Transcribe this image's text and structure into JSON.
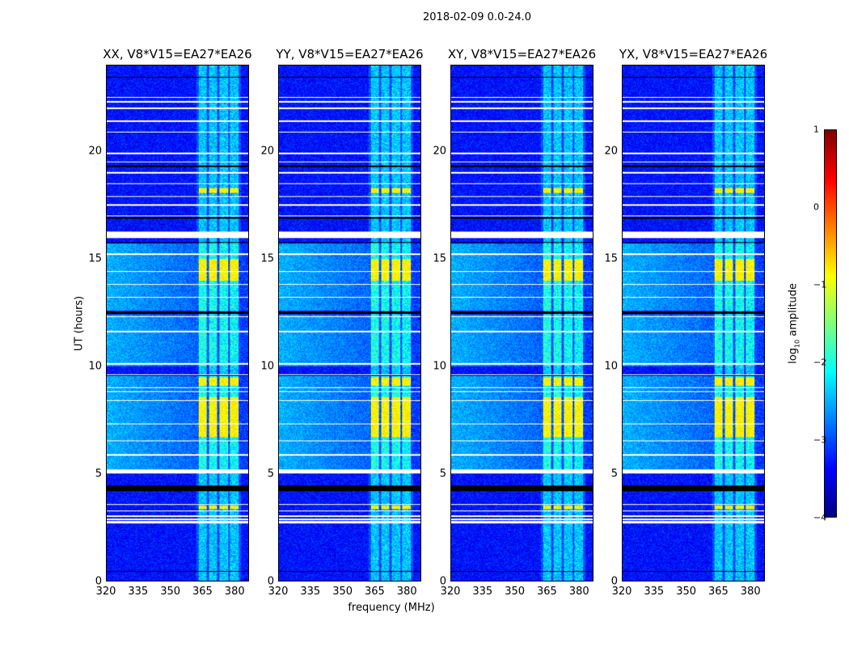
{
  "chart_data": {
    "type": "heatmap",
    "title": "2018-02-09 0.0-24.0",
    "xlabel": "frequency (MHz)",
    "ylabel": "UT (hours)",
    "xlim": [
      320,
      386.7
    ],
    "ylim": [
      0,
      24
    ],
    "xticks": [
      "320",
      "335",
      "350",
      "365",
      "380"
    ],
    "yticks": [
      "0",
      "5",
      "10",
      "15",
      "20"
    ],
    "panels": [
      {
        "title": "XX, V8*V15=EA27*EA26"
      },
      {
        "title": "YY, V8*V15=EA27*EA26"
      },
      {
        "title": "XY, V8*V15=EA27*EA26"
      },
      {
        "title": "YX, V8*V15=EA27*EA26"
      }
    ],
    "rfi_bands_mhz": [
      [
        363,
        367
      ],
      [
        368,
        372
      ],
      [
        373,
        377
      ],
      [
        378,
        382
      ]
    ],
    "strong_rfi_hours": [
      [
        6.7,
        8.6
      ],
      [
        9.1,
        9.5
      ],
      [
        14.0,
        15.0
      ],
      [
        3.35,
        3.5
      ],
      [
        18.1,
        18.3
      ]
    ],
    "flagged_white_hours": [
      [
        5.0,
        5.2
      ],
      [
        16.0,
        16.3
      ],
      [
        2.7,
        2.78
      ],
      [
        2.85,
        2.9
      ],
      [
        3.0,
        3.05
      ],
      [
        3.25,
        3.3
      ],
      [
        3.55,
        3.6
      ],
      [
        5.85,
        5.9
      ],
      [
        6.5,
        6.55
      ],
      [
        7.3,
        7.35
      ],
      [
        8.4,
        8.45
      ],
      [
        8.8,
        8.85
      ],
      [
        9.0,
        9.05
      ],
      [
        9.6,
        9.65
      ],
      [
        10.1,
        10.15
      ],
      [
        11.6,
        11.65
      ],
      [
        12.3,
        12.35
      ],
      [
        13.2,
        13.25
      ],
      [
        13.8,
        13.85
      ],
      [
        14.4,
        14.45
      ],
      [
        15.2,
        15.25
      ],
      [
        17.0,
        17.05
      ],
      [
        17.5,
        17.55
      ],
      [
        17.9,
        17.95
      ],
      [
        18.5,
        18.55
      ],
      [
        19.0,
        19.05
      ],
      [
        19.5,
        19.55
      ],
      [
        19.9,
        19.95
      ],
      [
        20.9,
        20.95
      ],
      [
        21.4,
        21.45
      ],
      [
        22.0,
        22.05
      ],
      [
        22.3,
        22.35
      ],
      [
        22.5,
        22.55
      ]
    ],
    "flagged_black_hours": [
      [
        0.42,
        0.47
      ],
      [
        4.2,
        4.45
      ],
      [
        9.55,
        9.6
      ],
      [
        12.45,
        12.55
      ],
      [
        15.75,
        15.8
      ],
      [
        19.3,
        19.35
      ],
      [
        23.45,
        23.5
      ],
      [
        16.9,
        16.95
      ]
    ],
    "colorbar": {
      "label": "log10 amplitude",
      "label_base": "log",
      "label_sub": "10",
      "label_rest": " amplitude",
      "range": [
        -4,
        1
      ],
      "ticks": [
        "1",
        "0",
        "−1",
        "−2",
        "−3",
        "−4"
      ],
      "colormap": "jet"
    }
  }
}
